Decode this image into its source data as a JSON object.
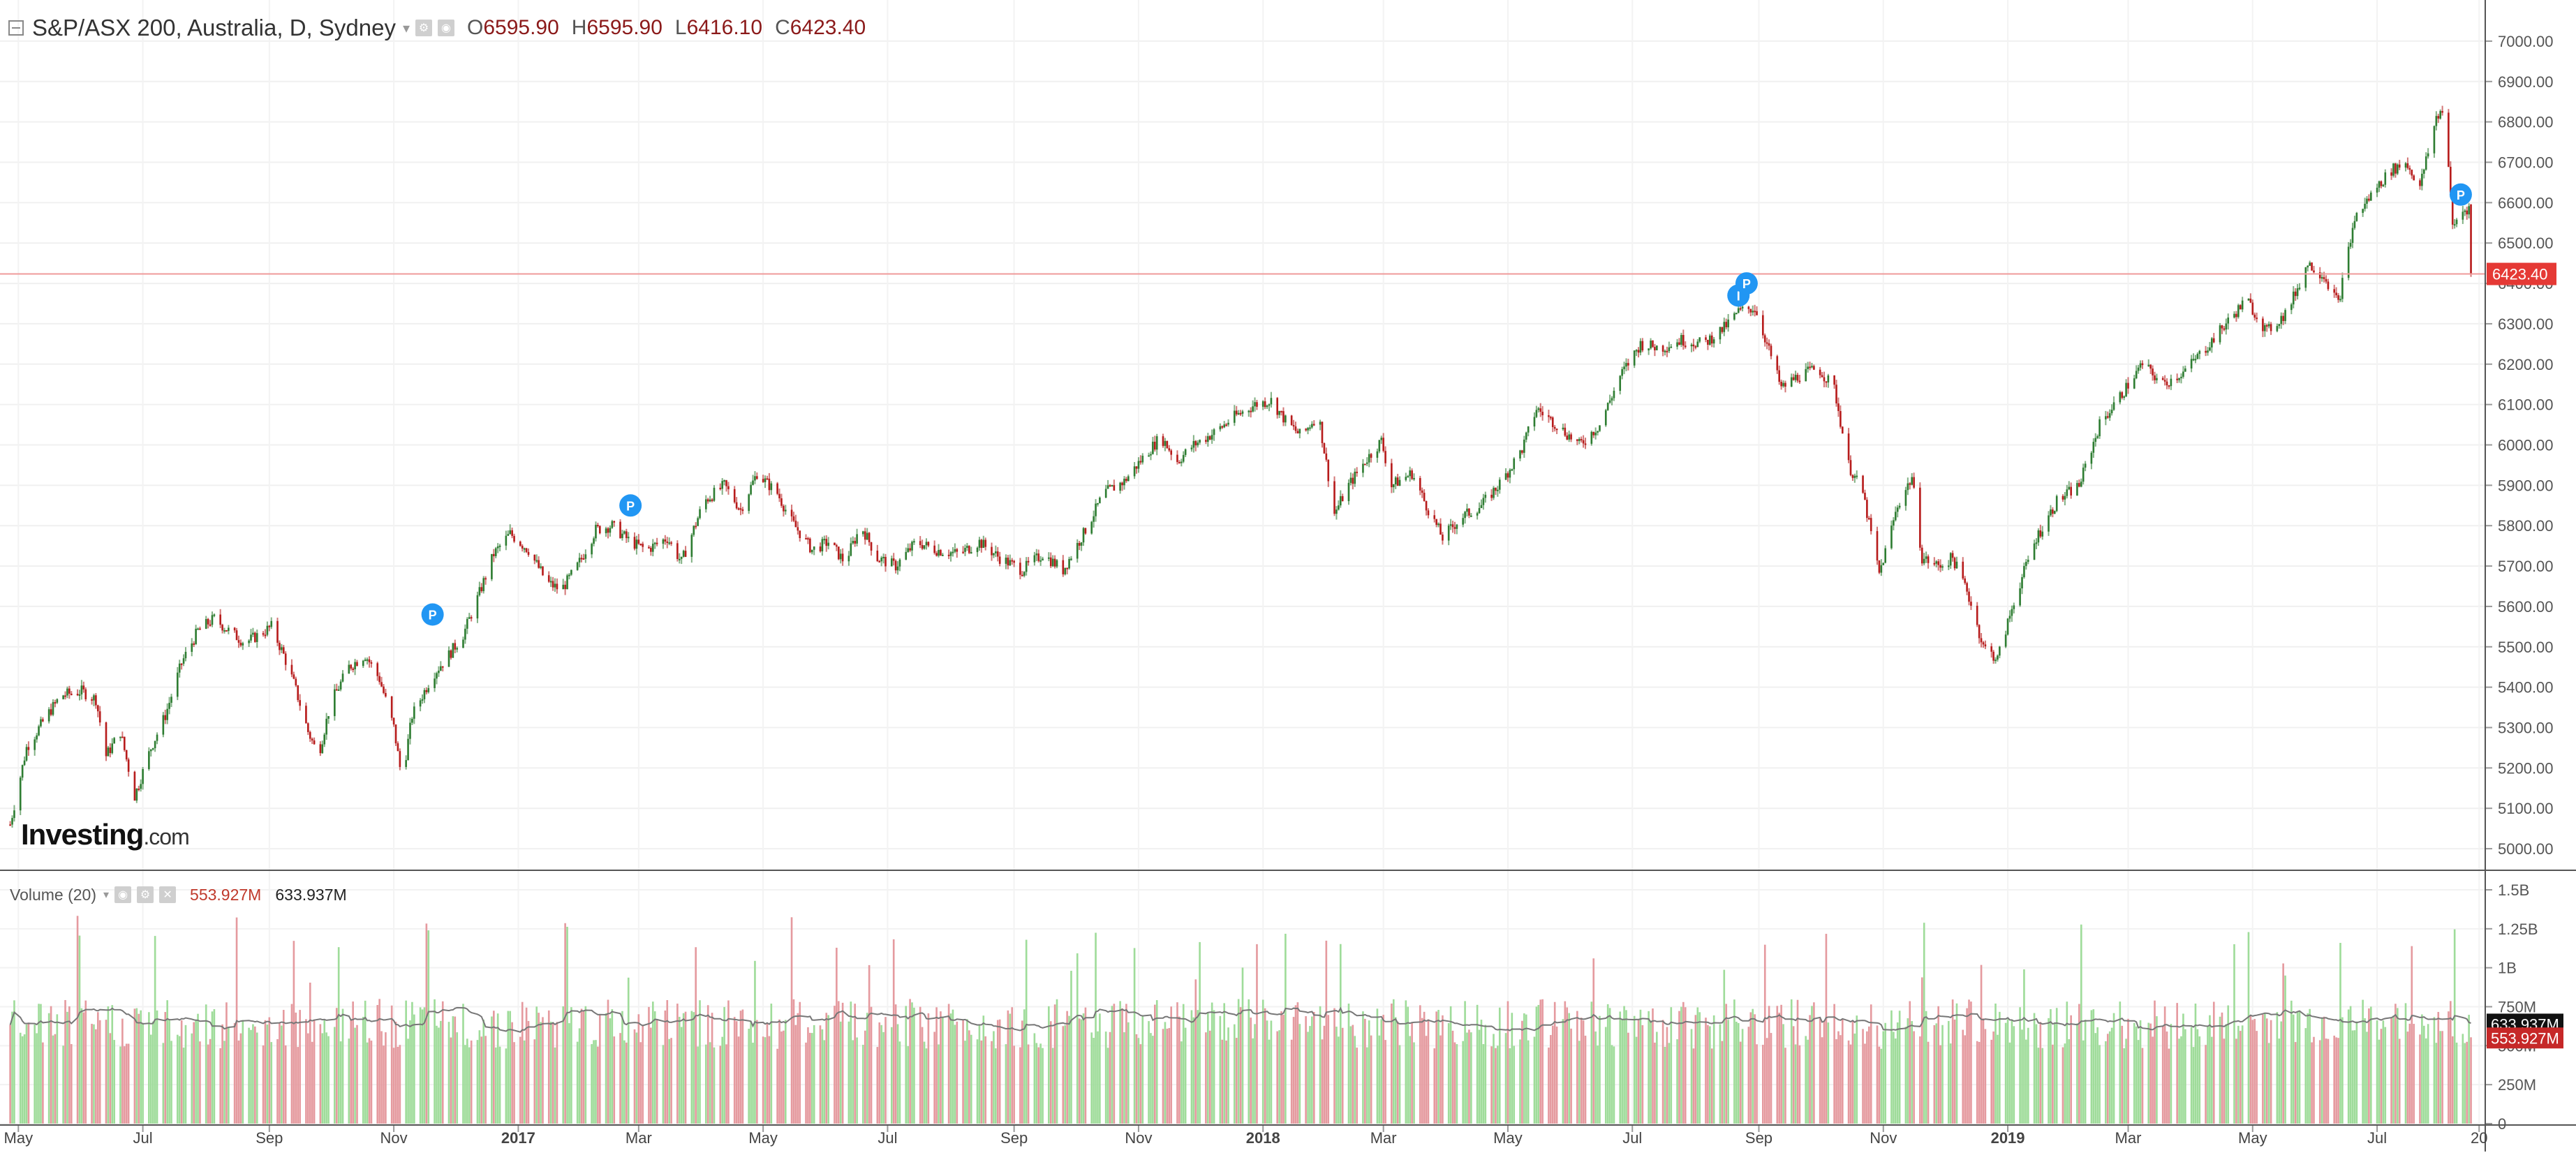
{
  "header": {
    "title": "S&P/ASX 200, Australia, D, Sydney",
    "ohlc": [
      {
        "key": "O",
        "value": "6595.90"
      },
      {
        "key": "H",
        "value": "6595.90"
      },
      {
        "key": "L",
        "value": "6416.10"
      },
      {
        "key": "C",
        "value": "6423.40"
      }
    ]
  },
  "volume_header": {
    "name": "Volume (20)",
    "value_volume": "553.927M",
    "value_ma": "633.937M"
  },
  "logo": {
    "main": "Investing",
    "suffix": ".com"
  },
  "colors": {
    "up": "#2e7d32",
    "down": "#b71c1c",
    "volume_up": "#9fdc9a",
    "volume_down": "#e59a9f",
    "last_price": "#e53935",
    "marker": "#2196f3"
  },
  "chart_data": {
    "type": "candlestick",
    "price": {
      "ylim": [
        4950,
        7050
      ],
      "yticks": [
        "7000.00",
        "6900.00",
        "6800.00",
        "6700.00",
        "6600.00",
        "6500.00",
        "6400.00",
        "6300.00",
        "6200.00",
        "6100.00",
        "6000.00",
        "5900.00",
        "5800.00",
        "5700.00",
        "5600.00",
        "5500.00",
        "5400.00",
        "5300.00",
        "5200.00",
        "5100.00",
        "5000.00"
      ],
      "last_price": 6423.4,
      "last_price_label": "6423.40",
      "series": [
        {
          "x": "2016-04-27",
          "y": 5060
        },
        {
          "x": "2016-05-05",
          "y": 5250
        },
        {
          "x": "2016-05-15",
          "y": 5330
        },
        {
          "x": "2016-05-22",
          "y": 5380
        },
        {
          "x": "2016-06-01",
          "y": 5390
        },
        {
          "x": "2016-06-08",
          "y": 5370
        },
        {
          "x": "2016-06-13",
          "y": 5230
        },
        {
          "x": "2016-06-20",
          "y": 5290
        },
        {
          "x": "2016-06-27",
          "y": 5130
        },
        {
          "x": "2016-07-05",
          "y": 5250
        },
        {
          "x": "2016-07-12",
          "y": 5330
        },
        {
          "x": "2016-07-20",
          "y": 5460
        },
        {
          "x": "2016-07-28",
          "y": 5540
        },
        {
          "x": "2016-08-05",
          "y": 5570
        },
        {
          "x": "2016-08-12",
          "y": 5540
        },
        {
          "x": "2016-08-20",
          "y": 5510
        },
        {
          "x": "2016-08-27",
          "y": 5530
        },
        {
          "x": "2016-09-02",
          "y": 5550
        },
        {
          "x": "2016-09-08",
          "y": 5480
        },
        {
          "x": "2016-09-13",
          "y": 5410
        },
        {
          "x": "2016-09-20",
          "y": 5290
        },
        {
          "x": "2016-09-25",
          "y": 5230
        },
        {
          "x": "2016-10-01",
          "y": 5360
        },
        {
          "x": "2016-10-10",
          "y": 5450
        },
        {
          "x": "2016-10-18",
          "y": 5480
        },
        {
          "x": "2016-10-25",
          "y": 5420
        },
        {
          "x": "2016-11-01",
          "y": 5300
        },
        {
          "x": "2016-11-05",
          "y": 5170
        },
        {
          "x": "2016-11-10",
          "y": 5330
        },
        {
          "x": "2016-11-20",
          "y": 5430
        },
        {
          "x": "2016-11-28",
          "y": 5480
        },
        {
          "x": "2016-12-05",
          "y": 5530
        },
        {
          "x": "2016-12-12",
          "y": 5620
        },
        {
          "x": "2016-12-20",
          "y": 5730
        },
        {
          "x": "2016-12-28",
          "y": 5780
        },
        {
          "x": "2017-01-06",
          "y": 5740
        },
        {
          "x": "2017-01-15",
          "y": 5660
        },
        {
          "x": "2017-01-22",
          "y": 5640
        },
        {
          "x": "2017-01-30",
          "y": 5700
        },
        {
          "x": "2017-02-08",
          "y": 5790
        },
        {
          "x": "2017-02-16",
          "y": 5800
        },
        {
          "x": "2017-02-25",
          "y": 5760
        },
        {
          "x": "2017-03-05",
          "y": 5740
        },
        {
          "x": "2017-03-15",
          "y": 5770
        },
        {
          "x": "2017-03-22",
          "y": 5710
        },
        {
          "x": "2017-04-02",
          "y": 5860
        },
        {
          "x": "2017-04-12",
          "y": 5900
        },
        {
          "x": "2017-04-20",
          "y": 5840
        },
        {
          "x": "2017-04-28",
          "y": 5930
        },
        {
          "x": "2017-05-08",
          "y": 5880
        },
        {
          "x": "2017-05-15",
          "y": 5810
        },
        {
          "x": "2017-05-25",
          "y": 5740
        },
        {
          "x": "2017-06-02",
          "y": 5760
        },
        {
          "x": "2017-06-10",
          "y": 5710
        },
        {
          "x": "2017-06-18",
          "y": 5800
        },
        {
          "x": "2017-06-26",
          "y": 5720
        },
        {
          "x": "2017-07-05",
          "y": 5700
        },
        {
          "x": "2017-07-15",
          "y": 5760
        },
        {
          "x": "2017-07-25",
          "y": 5740
        },
        {
          "x": "2017-08-05",
          "y": 5730
        },
        {
          "x": "2017-08-15",
          "y": 5760
        },
        {
          "x": "2017-08-25",
          "y": 5720
        },
        {
          "x": "2017-09-05",
          "y": 5690
        },
        {
          "x": "2017-09-15",
          "y": 5730
        },
        {
          "x": "2017-09-25",
          "y": 5690
        },
        {
          "x": "2017-10-05",
          "y": 5780
        },
        {
          "x": "2017-10-15",
          "y": 5880
        },
        {
          "x": "2017-10-25",
          "y": 5910
        },
        {
          "x": "2017-11-05",
          "y": 5980
        },
        {
          "x": "2017-11-12",
          "y": 6020
        },
        {
          "x": "2017-11-20",
          "y": 5960
        },
        {
          "x": "2017-11-28",
          "y": 6000
        },
        {
          "x": "2017-12-08",
          "y": 6030
        },
        {
          "x": "2017-12-18",
          "y": 6070
        },
        {
          "x": "2017-12-28",
          "y": 6100
        },
        {
          "x": "2018-01-05",
          "y": 6110
        },
        {
          "x": "2018-01-12",
          "y": 6060
        },
        {
          "x": "2018-01-20",
          "y": 6020
        },
        {
          "x": "2018-01-28",
          "y": 6080
        },
        {
          "x": "2018-02-05",
          "y": 5830
        },
        {
          "x": "2018-02-12",
          "y": 5900
        },
        {
          "x": "2018-02-20",
          "y": 5960
        },
        {
          "x": "2018-02-28",
          "y": 6010
        },
        {
          "x": "2018-03-05",
          "y": 5900
        },
        {
          "x": "2018-03-15",
          "y": 5930
        },
        {
          "x": "2018-03-22",
          "y": 5850
        },
        {
          "x": "2018-03-30",
          "y": 5770
        },
        {
          "x": "2018-04-08",
          "y": 5820
        },
        {
          "x": "2018-04-18",
          "y": 5850
        },
        {
          "x": "2018-04-28",
          "y": 5910
        },
        {
          "x": "2018-05-08",
          "y": 5990
        },
        {
          "x": "2018-05-15",
          "y": 6090
        },
        {
          "x": "2018-05-25",
          "y": 6050
        },
        {
          "x": "2018-06-05",
          "y": 6000
        },
        {
          "x": "2018-06-15",
          "y": 6050
        },
        {
          "x": "2018-06-25",
          "y": 6170
        },
        {
          "x": "2018-07-05",
          "y": 6250
        },
        {
          "x": "2018-07-15",
          "y": 6240
        },
        {
          "x": "2018-07-25",
          "y": 6260
        },
        {
          "x": "2018-08-05",
          "y": 6250
        },
        {
          "x": "2018-08-15",
          "y": 6290
        },
        {
          "x": "2018-08-22",
          "y": 6330
        },
        {
          "x": "2018-08-30",
          "y": 6340
        },
        {
          "x": "2018-09-05",
          "y": 6250
        },
        {
          "x": "2018-09-12",
          "y": 6140
        },
        {
          "x": "2018-09-20",
          "y": 6170
        },
        {
          "x": "2018-09-30",
          "y": 6190
        },
        {
          "x": "2018-10-08",
          "y": 6140
        },
        {
          "x": "2018-10-15",
          "y": 5950
        },
        {
          "x": "2018-10-22",
          "y": 5880
        },
        {
          "x": "2018-10-30",
          "y": 5680
        },
        {
          "x": "2018-11-08",
          "y": 5850
        },
        {
          "x": "2018-11-15",
          "y": 5920
        },
        {
          "x": "2018-11-20",
          "y": 5720
        },
        {
          "x": "2018-11-28",
          "y": 5700
        },
        {
          "x": "2018-12-05",
          "y": 5720
        },
        {
          "x": "2018-12-12",
          "y": 5640
        },
        {
          "x": "2018-12-20",
          "y": 5500
        },
        {
          "x": "2018-12-27",
          "y": 5470
        },
        {
          "x": "2019-01-05",
          "y": 5630
        },
        {
          "x": "2019-01-15",
          "y": 5770
        },
        {
          "x": "2019-01-25",
          "y": 5860
        },
        {
          "x": "2019-02-05",
          "y": 5900
        },
        {
          "x": "2019-02-15",
          "y": 6050
        },
        {
          "x": "2019-02-25",
          "y": 6120
        },
        {
          "x": "2019-03-08",
          "y": 6200
        },
        {
          "x": "2019-03-18",
          "y": 6150
        },
        {
          "x": "2019-03-28",
          "y": 6180
        },
        {
          "x": "2019-04-08",
          "y": 6240
        },
        {
          "x": "2019-04-18",
          "y": 6300
        },
        {
          "x": "2019-04-28",
          "y": 6360
        },
        {
          "x": "2019-05-08",
          "y": 6280
        },
        {
          "x": "2019-05-18",
          "y": 6330
        },
        {
          "x": "2019-05-28",
          "y": 6450
        },
        {
          "x": "2019-06-05",
          "y": 6420
        },
        {
          "x": "2019-06-12",
          "y": 6350
        },
        {
          "x": "2019-06-20",
          "y": 6560
        },
        {
          "x": "2019-07-01",
          "y": 6640
        },
        {
          "x": "2019-07-08",
          "y": 6680
        },
        {
          "x": "2019-07-15",
          "y": 6700
        },
        {
          "x": "2019-07-22",
          "y": 6640
        },
        {
          "x": "2019-07-30",
          "y": 6810
        },
        {
          "x": "2019-08-03",
          "y": 6840
        },
        {
          "x": "2019-08-07",
          "y": 6540
        },
        {
          "x": "2019-08-12",
          "y": 6580
        },
        {
          "x": "2019-08-16",
          "y": 6590
        },
        {
          "x": "2019-08-18",
          "y": 6423
        }
      ]
    },
    "volume": {
      "ylim": [
        0,
        1500000000
      ],
      "yticks": [
        "1.5B",
        "1.25B",
        "1B",
        "750M",
        "500M",
        "250M",
        "0"
      ],
      "last_volume": 553927000,
      "last_volume_label": "553.927M",
      "ma_last": 633937000,
      "ma_last_label": "633.937M",
      "ma_level": 620000000
    },
    "x_axis": {
      "range": [
        "2016-04-22",
        "2019-08-23"
      ],
      "ticks": [
        {
          "label": "May",
          "x": "2016-05-01",
          "bold": false
        },
        {
          "label": "Jul",
          "x": "2016-07-01",
          "bold": false
        },
        {
          "label": "Sep",
          "x": "2016-09-01",
          "bold": false
        },
        {
          "label": "Nov",
          "x": "2016-11-01",
          "bold": false
        },
        {
          "label": "2017",
          "x": "2017-01-01",
          "bold": true
        },
        {
          "label": "Mar",
          "x": "2017-03-01",
          "bold": false
        },
        {
          "label": "May",
          "x": "2017-05-01",
          "bold": false
        },
        {
          "label": "Jul",
          "x": "2017-07-01",
          "bold": false
        },
        {
          "label": "Sep",
          "x": "2017-09-01",
          "bold": false
        },
        {
          "label": "Nov",
          "x": "2017-11-01",
          "bold": false
        },
        {
          "label": "2018",
          "x": "2018-01-01",
          "bold": true
        },
        {
          "label": "Mar",
          "x": "2018-03-01",
          "bold": false
        },
        {
          "label": "May",
          "x": "2018-05-01",
          "bold": false
        },
        {
          "label": "Jul",
          "x": "2018-07-01",
          "bold": false
        },
        {
          "label": "Sep",
          "x": "2018-09-01",
          "bold": false
        },
        {
          "label": "Nov",
          "x": "2018-11-01",
          "bold": false
        },
        {
          "label": "2019",
          "x": "2019-01-01",
          "bold": true
        },
        {
          "label": "Mar",
          "x": "2019-03-01",
          "bold": false
        },
        {
          "label": "May",
          "x": "2019-05-01",
          "bold": false
        },
        {
          "label": "Jul",
          "x": "2019-07-01",
          "bold": false
        },
        {
          "label": "20",
          "x": "2019-08-20",
          "bold": false
        }
      ]
    },
    "markers": [
      {
        "label": "P",
        "x": "2016-11-20",
        "y": 5580
      },
      {
        "label": "P",
        "x": "2017-02-25",
        "y": 5850
      },
      {
        "label": "I",
        "x": "2018-08-22",
        "y": 6370
      },
      {
        "label": "P",
        "x": "2018-08-26",
        "y": 6400
      },
      {
        "label": "P",
        "x": "2019-08-11",
        "y": 6620
      }
    ],
    "grid": true
  }
}
